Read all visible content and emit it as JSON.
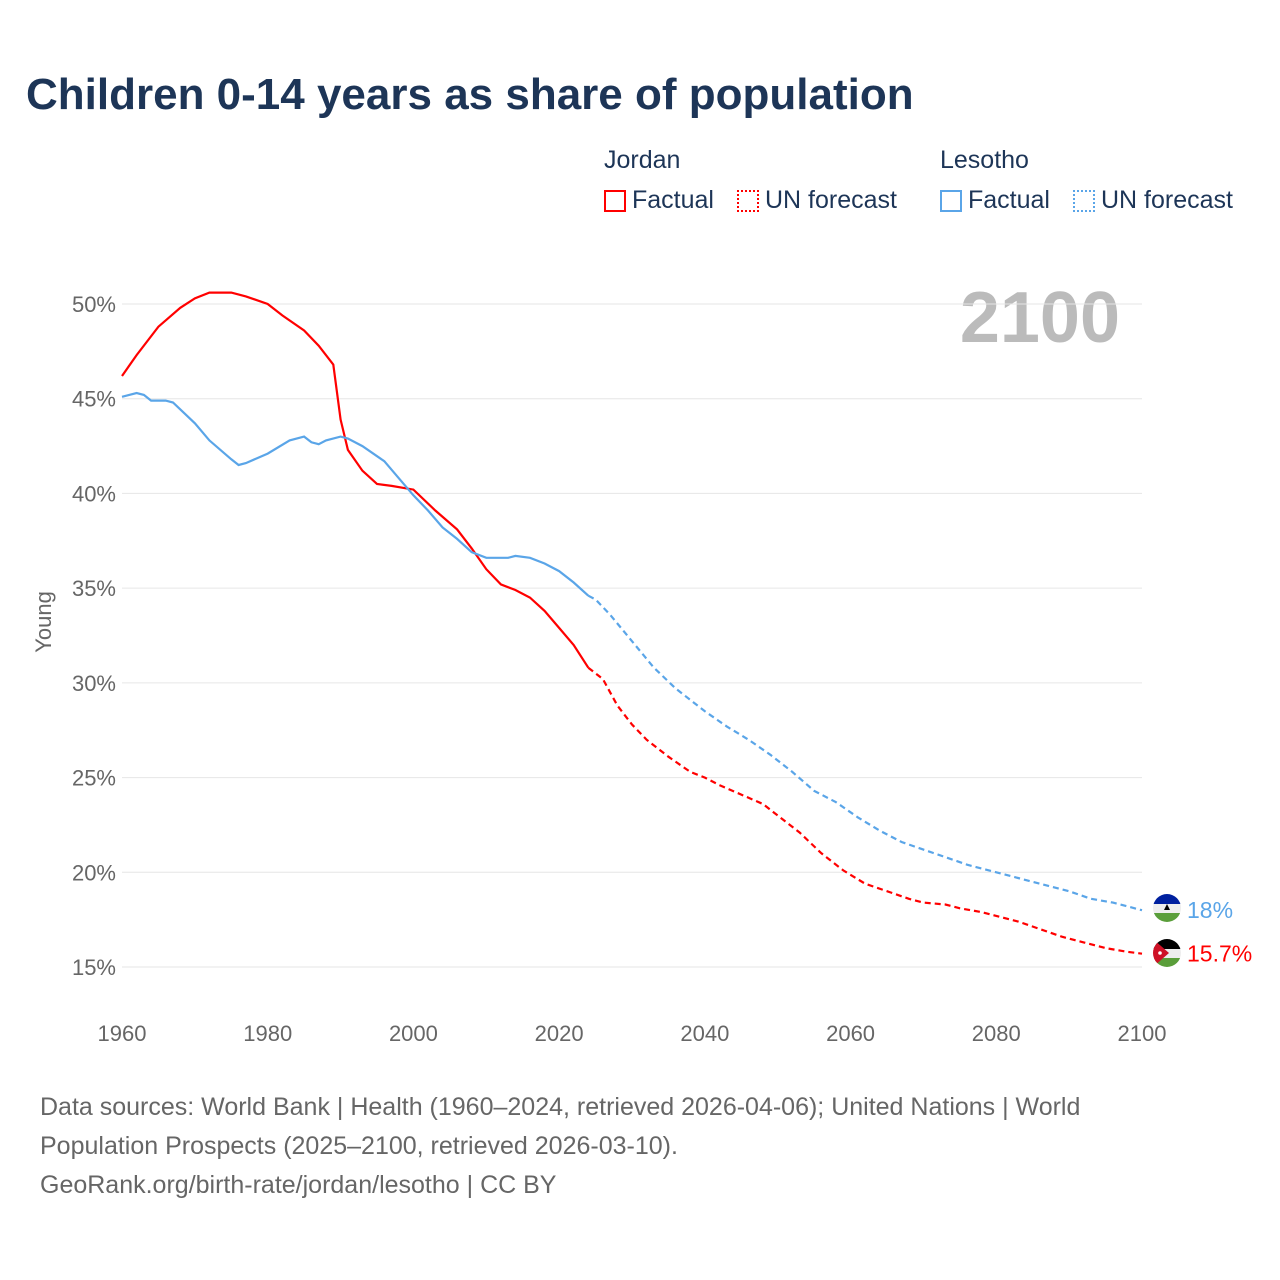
{
  "title": "Children 0-14 years as share of population",
  "legend": {
    "jordan": "Jordan",
    "lesotho": "Lesotho",
    "factual": "Factual",
    "forecast": "UN forecast"
  },
  "colors": {
    "jordan": "#ff0000",
    "lesotho": "#5aa5e8"
  },
  "year_label": "2100",
  "source": "Data sources: World Bank | Health (1960–2024, retrieved 2026-04-06); United Nations | World Population Prospects (2025–2100, retrieved 2026-03-10).",
  "credit": "GeoRank.org/birth-rate/jordan/lesotho | CC BY",
  "chart_data": {
    "type": "line",
    "ylabel": "Young",
    "xlim": [
      1960,
      2100
    ],
    "ylim": [
      15,
      50
    ],
    "xticks": [
      1960,
      1980,
      2000,
      2020,
      2040,
      2060,
      2080,
      2100
    ],
    "yticks": [
      15,
      20,
      25,
      30,
      35,
      40,
      45,
      50
    ],
    "ytick_labels": [
      "15%",
      "20%",
      "25%",
      "30%",
      "35%",
      "40%",
      "45%",
      "50%"
    ],
    "forecast_start": 2024,
    "series": [
      {
        "name": "Jordan",
        "end_label": "15.7%",
        "points": [
          [
            1960,
            46.2
          ],
          [
            1962,
            47.3
          ],
          [
            1965,
            48.8
          ],
          [
            1968,
            49.8
          ],
          [
            1970,
            50.3
          ],
          [
            1972,
            50.6
          ],
          [
            1975,
            50.6
          ],
          [
            1977,
            50.4
          ],
          [
            1980,
            50.0
          ],
          [
            1982,
            49.4
          ],
          [
            1985,
            48.6
          ],
          [
            1987,
            47.8
          ],
          [
            1989,
            46.8
          ],
          [
            1990,
            43.9
          ],
          [
            1991,
            42.3
          ],
          [
            1993,
            41.2
          ],
          [
            1995,
            40.5
          ],
          [
            1997,
            40.4
          ],
          [
            2000,
            40.2
          ],
          [
            2003,
            39.1
          ],
          [
            2006,
            38.1
          ],
          [
            2008,
            37.1
          ],
          [
            2010,
            36.0
          ],
          [
            2012,
            35.2
          ],
          [
            2014,
            34.9
          ],
          [
            2016,
            34.5
          ],
          [
            2018,
            33.8
          ],
          [
            2020,
            32.9
          ],
          [
            2022,
            32.0
          ],
          [
            2024,
            30.8
          ],
          [
            2026,
            30.2
          ],
          [
            2028,
            28.8
          ],
          [
            2030,
            27.8
          ],
          [
            2032,
            27.0
          ],
          [
            2035,
            26.1
          ],
          [
            2038,
            25.3
          ],
          [
            2040,
            25.0
          ],
          [
            2042,
            24.6
          ],
          [
            2045,
            24.1
          ],
          [
            2048,
            23.6
          ],
          [
            2050,
            23.0
          ],
          [
            2053,
            22.1
          ],
          [
            2056,
            21.0
          ],
          [
            2059,
            20.1
          ],
          [
            2062,
            19.4
          ],
          [
            2065,
            19.0
          ],
          [
            2068,
            18.6
          ],
          [
            2070,
            18.4
          ],
          [
            2073,
            18.3
          ],
          [
            2075,
            18.1
          ],
          [
            2078,
            17.9
          ],
          [
            2080,
            17.7
          ],
          [
            2083,
            17.4
          ],
          [
            2086,
            17.0
          ],
          [
            2089,
            16.6
          ],
          [
            2092,
            16.3
          ],
          [
            2095,
            16.0
          ],
          [
            2098,
            15.8
          ],
          [
            2100,
            15.7
          ]
        ]
      },
      {
        "name": "Lesotho",
        "end_label": "18%",
        "points": [
          [
            1960,
            45.1
          ],
          [
            1962,
            45.3
          ],
          [
            1963,
            45.2
          ],
          [
            1964,
            44.9
          ],
          [
            1965,
            44.9
          ],
          [
            1966,
            44.9
          ],
          [
            1967,
            44.8
          ],
          [
            1970,
            43.7
          ],
          [
            1972,
            42.8
          ],
          [
            1975,
            41.8
          ],
          [
            1976,
            41.5
          ],
          [
            1977,
            41.6
          ],
          [
            1980,
            42.1
          ],
          [
            1983,
            42.8
          ],
          [
            1985,
            43.0
          ],
          [
            1986,
            42.7
          ],
          [
            1987,
            42.6
          ],
          [
            1988,
            42.8
          ],
          [
            1990,
            43.0
          ],
          [
            1991,
            42.9
          ],
          [
            1993,
            42.5
          ],
          [
            1996,
            41.7
          ],
          [
            1998,
            40.8
          ],
          [
            2000,
            39.9
          ],
          [
            2002,
            39.1
          ],
          [
            2004,
            38.2
          ],
          [
            2006,
            37.6
          ],
          [
            2008,
            36.9
          ],
          [
            2010,
            36.6
          ],
          [
            2013,
            36.6
          ],
          [
            2014,
            36.7
          ],
          [
            2016,
            36.6
          ],
          [
            2018,
            36.3
          ],
          [
            2020,
            35.9
          ],
          [
            2022,
            35.3
          ],
          [
            2024,
            34.6
          ],
          [
            2025,
            34.4
          ],
          [
            2027,
            33.6
          ],
          [
            2030,
            32.2
          ],
          [
            2033,
            30.8
          ],
          [
            2036,
            29.7
          ],
          [
            2040,
            28.5
          ],
          [
            2043,
            27.7
          ],
          [
            2046,
            27.0
          ],
          [
            2049,
            26.2
          ],
          [
            2052,
            25.3
          ],
          [
            2055,
            24.3
          ],
          [
            2058,
            23.7
          ],
          [
            2061,
            22.9
          ],
          [
            2064,
            22.2
          ],
          [
            2067,
            21.6
          ],
          [
            2070,
            21.2
          ],
          [
            2073,
            20.8
          ],
          [
            2076,
            20.4
          ],
          [
            2080,
            20.0
          ],
          [
            2083,
            19.7
          ],
          [
            2086,
            19.4
          ],
          [
            2090,
            19.0
          ],
          [
            2093,
            18.6
          ],
          [
            2096,
            18.4
          ],
          [
            2100,
            18.0
          ]
        ]
      }
    ]
  }
}
